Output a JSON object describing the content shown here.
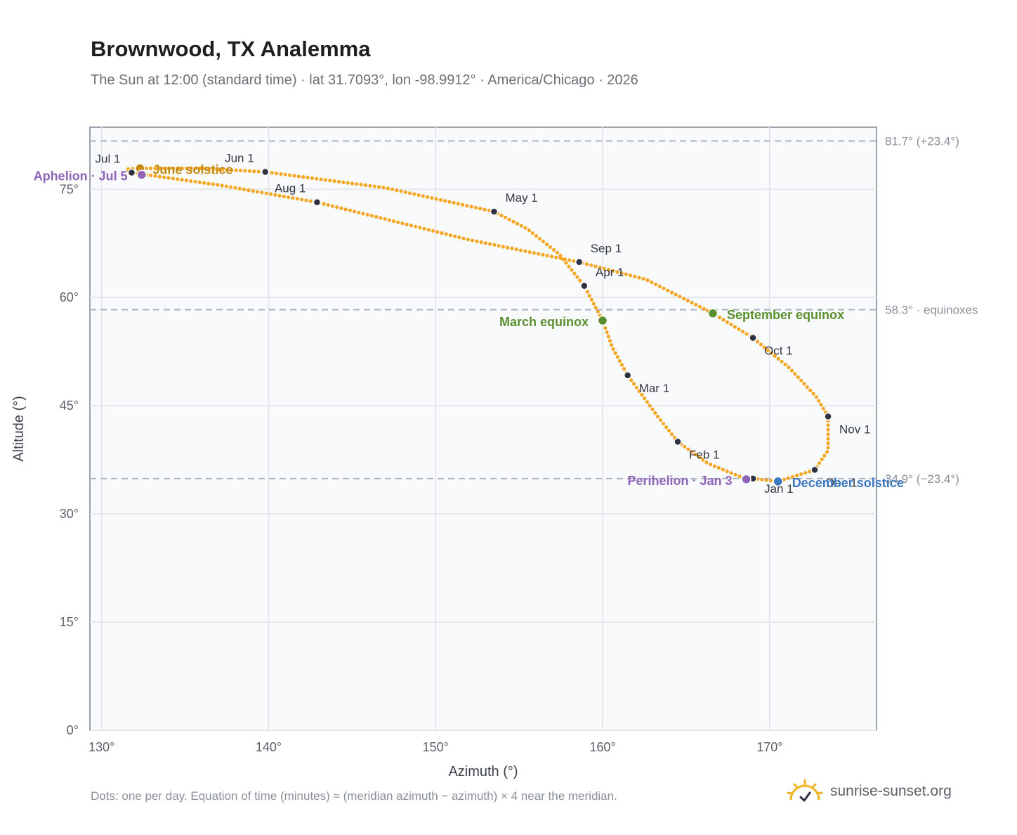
{
  "title": "Brownwood, TX Analemma",
  "subtitle": "The Sun at 12:00 (standard time) · lat 31.7093°, lon -98.9912° · America/Chicago · 2026",
  "footnote": "Dots: one per day. Equation of time (minutes) ≈ (meridian azimuth − azimuth) × 4 near the meridian.",
  "brand": {
    "name": "sunrise-sunset.org",
    "icon": "sun-checkmark-icon",
    "color": "#f0b323"
  },
  "colors": {
    "curve": "#f5a623",
    "month_dot": "#2d3140",
    "solstice_june": "#c48a12",
    "equinox": "#5a8f2e",
    "solstice_december": "#3a78c0",
    "apsis": "#8e63b8",
    "grid": "#e4e7ec",
    "reference_line": "#aab4c0",
    "plot_bg": "#f8fafc",
    "frame": "#9aa3ae"
  },
  "chart_data": {
    "type": "scatter",
    "title": "Brownwood, TX Analemma",
    "xlabel": "Azimuth (°)",
    "ylabel": "Altitude (°)",
    "xlim": [
      129.3,
      176.4
    ],
    "ylim": [
      0,
      83.6
    ],
    "x_ticks": [
      130,
      140,
      150,
      160,
      170
    ],
    "x_tick_labels": [
      "130°",
      "140°",
      "150°",
      "160°",
      "170°"
    ],
    "y_ticks": [
      0,
      15,
      30,
      45,
      60,
      75
    ],
    "y_tick_labels": [
      "0°",
      "15°",
      "30°",
      "45°",
      "60°",
      "75°"
    ],
    "grid": true,
    "reference_lines": [
      {
        "altitude": 81.7,
        "label": "81.7° (+23.4°)"
      },
      {
        "altitude": 58.3,
        "label": "58.3° · equinoxes"
      },
      {
        "altitude": 34.9,
        "label": "34.9° (−23.4°)"
      }
    ],
    "month_points": [
      {
        "label": "Jan 1",
        "azimuth": 169.0,
        "altitude": 34.9
      },
      {
        "label": "Feb 1",
        "azimuth": 164.5,
        "altitude": 40.0
      },
      {
        "label": "Mar 1",
        "azimuth": 161.5,
        "altitude": 49.2
      },
      {
        "label": "Apr 1",
        "azimuth": 158.9,
        "altitude": 61.6
      },
      {
        "label": "May 1",
        "azimuth": 153.5,
        "altitude": 71.9
      },
      {
        "label": "Jun 1",
        "azimuth": 139.8,
        "altitude": 77.4
      },
      {
        "label": "Jul 1",
        "azimuth": 131.8,
        "altitude": 77.3
      },
      {
        "label": "Aug 1",
        "azimuth": 142.9,
        "altitude": 73.2
      },
      {
        "label": "Sep 1",
        "azimuth": 158.6,
        "altitude": 64.9
      },
      {
        "label": "Oct 1",
        "azimuth": 169.0,
        "altitude": 54.4
      },
      {
        "label": "Nov 1",
        "azimuth": 173.5,
        "altitude": 43.5
      },
      {
        "label": "Dec 1",
        "azimuth": 172.7,
        "altitude": 36.1
      }
    ],
    "events": [
      {
        "label": "June solstice",
        "azimuth": 132.3,
        "altitude": 77.9,
        "color": "#c48a12"
      },
      {
        "label": "Aphelion · Jul 5",
        "azimuth": 132.4,
        "altitude": 77.0,
        "color": "#8e63b8"
      },
      {
        "label": "March equinox",
        "azimuth": 160.0,
        "altitude": 56.8,
        "color": "#5a8f2e"
      },
      {
        "label": "September equinox",
        "azimuth": 166.6,
        "altitude": 57.8,
        "color": "#5a8f2e"
      },
      {
        "label": "Perihelion · Jan 3",
        "azimuth": 168.6,
        "altitude": 34.8,
        "color": "#8e63b8"
      },
      {
        "label": "December solstice",
        "azimuth": 170.5,
        "altitude": 34.5,
        "color": "#3a78c0"
      }
    ],
    "series": [
      {
        "name": "daily sun position",
        "points": "one per day",
        "path": [
          [
            169.0,
            34.9
          ],
          [
            170.5,
            34.5
          ],
          [
            172.7,
            36.1
          ],
          [
            173.5,
            38.8
          ],
          [
            173.5,
            43.5
          ],
          [
            172.8,
            46.2
          ],
          [
            171.2,
            50.2
          ],
          [
            169.0,
            54.4
          ],
          [
            166.6,
            57.8
          ],
          [
            162.6,
            62.5
          ],
          [
            158.6,
            64.9
          ],
          [
            152.0,
            68.0
          ],
          [
            142.9,
            73.2
          ],
          [
            137.0,
            75.6
          ],
          [
            131.8,
            77.3
          ],
          [
            131.5,
            77.8
          ],
          [
            132.3,
            77.9
          ],
          [
            136.0,
            77.9
          ],
          [
            139.8,
            77.4
          ],
          [
            147.0,
            75.2
          ],
          [
            153.5,
            71.9
          ],
          [
            155.5,
            69.5
          ],
          [
            157.4,
            66.0
          ],
          [
            158.9,
            61.6
          ],
          [
            160.0,
            56.8
          ],
          [
            160.6,
            53.0
          ],
          [
            161.5,
            49.2
          ],
          [
            163.3,
            43.5
          ],
          [
            164.5,
            40.0
          ],
          [
            166.3,
            37.0
          ],
          [
            168.2,
            35.2
          ],
          [
            169.0,
            34.9
          ]
        ]
      }
    ]
  }
}
